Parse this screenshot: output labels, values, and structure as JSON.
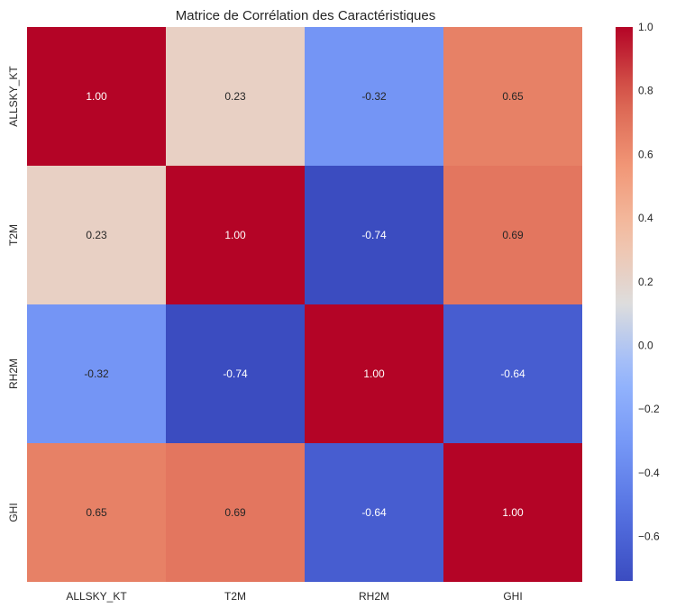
{
  "chart_data": {
    "type": "heatmap",
    "title": "Matrice de Corrélation des Caractéristiques",
    "row_labels": [
      "ALLSKY_KT",
      "T2M",
      "RH2M",
      "GHI"
    ],
    "col_labels": [
      "ALLSKY_KT",
      "T2M",
      "RH2M",
      "GHI"
    ],
    "values": [
      [
        1.0,
        0.23,
        -0.32,
        0.65
      ],
      [
        0.23,
        1.0,
        -0.74,
        0.69
      ],
      [
        -0.32,
        -0.74,
        1.0,
        -0.64
      ],
      [
        0.65,
        0.69,
        -0.64,
        1.0
      ]
    ],
    "value_format": "0.00",
    "colormap": "coolwarm",
    "vmin": -0.74,
    "vmax": 1.0,
    "colorbar": {
      "ticks": [
        1.0,
        0.8,
        0.6,
        0.4,
        0.2,
        0.0,
        -0.2,
        -0.4,
        -0.6
      ],
      "tick_labels": [
        "1.0",
        "0.8",
        "0.6",
        "0.4",
        "0.2",
        "0.0",
        "−0.2",
        "−0.4",
        "−0.6"
      ],
      "placement": "right"
    }
  }
}
